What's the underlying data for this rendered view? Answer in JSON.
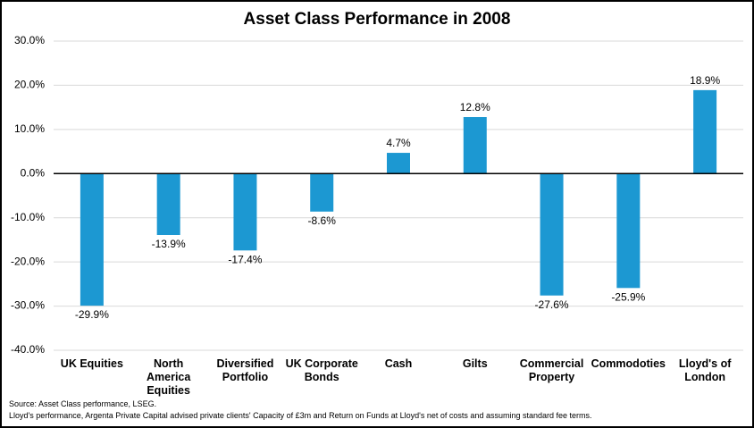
{
  "chart_data": {
    "type": "bar",
    "title": "Asset Class Performance in 2008",
    "categories": [
      "UK Equities",
      "North America Equities",
      "Diversified Portfolio",
      "UK Corporate Bonds",
      "Cash",
      "Gilts",
      "Commercial Property",
      "Commodoties",
      "Lloyd's of London"
    ],
    "values": [
      -29.9,
      -13.9,
      -17.4,
      -8.6,
      4.7,
      12.8,
      -27.6,
      -25.9,
      18.9
    ],
    "value_labels": [
      "-29.9%",
      "-13.9%",
      "-17.4%",
      "-8.6%",
      "4.7%",
      "12.8%",
      "-27.6%",
      "-25.9%",
      "18.9%"
    ],
    "color": "#1c98d2",
    "ylim": [
      -40,
      30
    ],
    "yticks": [
      {
        "value": -40,
        "label": "-40.0%"
      },
      {
        "value": -30,
        "label": "-30.0%"
      },
      {
        "value": -20,
        "label": "-20.0%"
      },
      {
        "value": -10,
        "label": "-10.0%"
      },
      {
        "value": 0,
        "label": "0.0%"
      },
      {
        "value": 10,
        "label": "10.0%"
      },
      {
        "value": 20,
        "label": "20.0%"
      },
      {
        "value": 30,
        "label": "30.0%"
      }
    ],
    "grid": true,
    "notes": [
      "Source: Asset Class performance, LSEG.",
      "Lloyd's performance, Argenta Private Capital advised private clients' Capacity of £3m and Return on Funds at Lloyd's net of costs and assuming standard fee terms."
    ]
  }
}
